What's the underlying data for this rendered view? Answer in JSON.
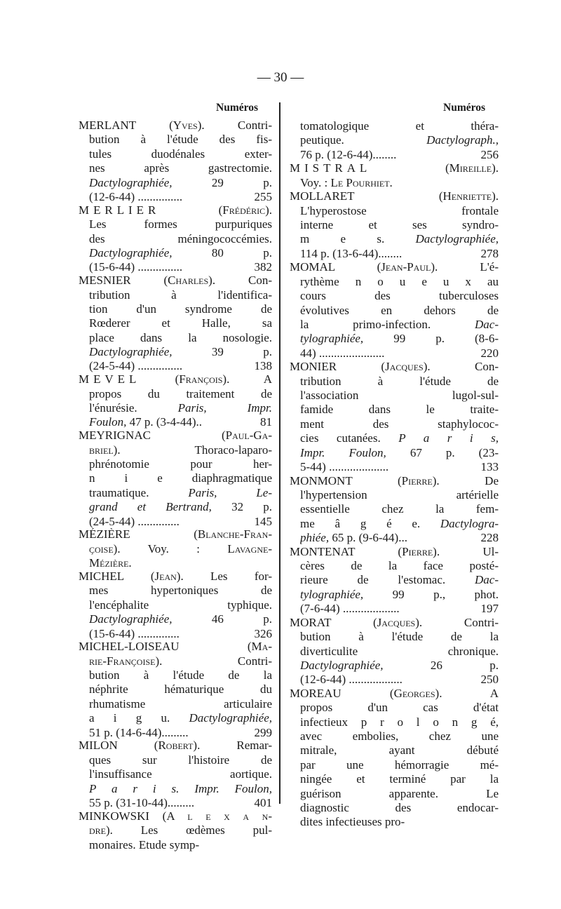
{
  "page_number": "— 30 —",
  "header_label": "Numéros",
  "left_column": [
    {
      "h": 1,
      "s": [
        [
          "MERLANT ",
          ""
        ],
        [
          "(Yves)",
          "sc"
        ],
        [
          ". Contri-",
          ""
        ]
      ]
    },
    {
      "s": [
        [
          "bution à l'étude des fis-",
          ""
        ]
      ]
    },
    {
      "s": [
        [
          "tules duodénales exter-",
          ""
        ]
      ]
    },
    {
      "s": [
        [
          "nes après gastrectomie.",
          ""
        ]
      ]
    },
    {
      "s": [
        [
          "Dactylographiée,",
          "i"
        ],
        [
          " 29 p.",
          ""
        ]
      ]
    },
    {
      "s": [
        [
          "(12-6-44) ...............",
          ""
        ]
      ],
      "n": "255"
    },
    {
      "h": 1,
      "s": [
        [
          "MERLIER",
          "sp"
        ],
        [
          " (Frédéric)",
          "sc"
        ],
        [
          ".",
          ""
        ]
      ]
    },
    {
      "s": [
        [
          "Les formes purpuriques",
          ""
        ]
      ]
    },
    {
      "s": [
        [
          "des méningococcémies.",
          ""
        ]
      ]
    },
    {
      "s": [
        [
          "Dactylographiée,",
          "i"
        ],
        [
          " 80 p.",
          ""
        ]
      ]
    },
    {
      "s": [
        [
          "(15-6-44) ...............",
          ""
        ]
      ],
      "n": "382"
    },
    {
      "h": 1,
      "s": [
        [
          "MESNIER ",
          ""
        ],
        [
          "(Charles)",
          "sc"
        ],
        [
          ". Con-",
          ""
        ]
      ]
    },
    {
      "s": [
        [
          "tribution à l'identifica-",
          ""
        ]
      ]
    },
    {
      "s": [
        [
          "tion d'un syndrome de",
          ""
        ]
      ]
    },
    {
      "s": [
        [
          "Rœderer et Halle, sa",
          ""
        ]
      ]
    },
    {
      "s": [
        [
          "place dans la nosologie.",
          ""
        ]
      ]
    },
    {
      "s": [
        [
          "Dactylographiée,",
          "i"
        ],
        [
          " 39 p.",
          ""
        ]
      ]
    },
    {
      "s": [
        [
          "(24-5-44) ...............",
          ""
        ]
      ],
      "n": "138"
    },
    {
      "h": 1,
      "s": [
        [
          "MEVEL",
          "sp"
        ],
        [
          " (François)",
          "sc"
        ],
        [
          ". A",
          ""
        ]
      ]
    },
    {
      "s": [
        [
          "propos du traitement de",
          ""
        ]
      ]
    },
    {
      "s": [
        [
          "l'énurésie. ",
          ""
        ],
        [
          "Paris, Impr.",
          "i"
        ]
      ]
    },
    {
      "s": [
        [
          "Foulon,",
          "i"
        ],
        [
          " 47 p. (3-4-44)..",
          ""
        ]
      ],
      "n": "81"
    },
    {
      "h": 1,
      "s": [
        [
          "MEYRIGNAC ",
          ""
        ],
        [
          "(Paul-Ga-",
          "sc"
        ]
      ]
    },
    {
      "s": [
        [
          "briel)",
          "sc"
        ],
        [
          ". Thoraco-laparo-",
          ""
        ]
      ]
    },
    {
      "s": [
        [
          "phrénotomie pour her-",
          ""
        ]
      ]
    },
    {
      "s": [
        [
          "n i e diaphragmatique",
          ""
        ]
      ]
    },
    {
      "s": [
        [
          "traumatique. ",
          ""
        ],
        [
          "Paris, Le-",
          "i"
        ]
      ]
    },
    {
      "s": [
        [
          "grand et Bertrand,",
          "i"
        ],
        [
          " 32 p.",
          ""
        ]
      ]
    },
    {
      "s": [
        [
          "(24-5-44) ..............",
          ""
        ]
      ],
      "n": "145"
    },
    {
      "h": 1,
      "s": [
        [
          "MÉZIÈRE ",
          ""
        ],
        [
          "(Blanche-Fran-",
          "sc"
        ]
      ]
    },
    {
      "s": [
        [
          "çoise)",
          "sc"
        ],
        [
          ". Voy. : ",
          ""
        ],
        [
          "Lavagne-",
          "sc"
        ]
      ]
    },
    {
      "s": [
        [
          "Mézière.",
          "sc"
        ]
      ]
    },
    {
      "h": 1,
      "s": [
        [
          "MICHEL ",
          ""
        ],
        [
          "(Jean)",
          "sc"
        ],
        [
          ". Les for-",
          ""
        ]
      ]
    },
    {
      "s": [
        [
          "mes hypertoniques de",
          ""
        ]
      ]
    },
    {
      "s": [
        [
          "l'encéphalite typhique.",
          ""
        ]
      ]
    },
    {
      "s": [
        [
          "Dactylographiée,",
          "i"
        ],
        [
          " 46 p.",
          ""
        ]
      ]
    },
    {
      "s": [
        [
          "(15-6-44) ..............",
          ""
        ]
      ],
      "n": "326"
    },
    {
      "h": 1,
      "s": [
        [
          "MICHEL-LOISEAU ",
          ""
        ],
        [
          "(Ma-",
          "sc"
        ]
      ]
    },
    {
      "s": [
        [
          "rie-Françoise)",
          "sc"
        ],
        [
          ". Contri-",
          ""
        ]
      ]
    },
    {
      "s": [
        [
          "bution à l'étude de la",
          ""
        ]
      ]
    },
    {
      "s": [
        [
          "néphrite hématurique du",
          ""
        ]
      ]
    },
    {
      "s": [
        [
          "rhumatisme articulaire",
          ""
        ]
      ]
    },
    {
      "s": [
        [
          "a i g u. ",
          ""
        ],
        [
          "Dactylographiée,",
          "i"
        ]
      ]
    },
    {
      "s": [
        [
          "51 p. (14-6-44).........",
          ""
        ]
      ],
      "n": "299"
    },
    {
      "h": 1,
      "s": [
        [
          "MILON ",
          ""
        ],
        [
          "(Robert)",
          "sc"
        ],
        [
          ". Remar-",
          ""
        ]
      ]
    },
    {
      "s": [
        [
          "ques sur l'histoire de",
          ""
        ]
      ]
    },
    {
      "s": [
        [
          "l'insuffisance aortique.",
          ""
        ]
      ]
    },
    {
      "s": [
        [
          "P a r i s. Impr. Foulon,",
          "i"
        ]
      ]
    },
    {
      "s": [
        [
          "55 p. (31-10-44).........",
          ""
        ]
      ],
      "n": "401"
    },
    {
      "h": 1,
      "s": [
        [
          "MINKOWSKI ",
          ""
        ],
        [
          "(A l e x a n-",
          "sc"
        ]
      ]
    },
    {
      "s": [
        [
          "dre)",
          "sc"
        ],
        [
          ". Les œdèmes pul-",
          ""
        ]
      ]
    },
    {
      "s": [
        [
          "monaires. Etude symp-",
          ""
        ]
      ]
    }
  ],
  "right_column": [
    {
      "s": [
        [
          "tomatologique et théra-",
          ""
        ]
      ]
    },
    {
      "s": [
        [
          "peutique. ",
          ""
        ],
        [
          "Dactylograph.,",
          "i"
        ]
      ]
    },
    {
      "s": [
        [
          "76 p. (12-6-44)........",
          ""
        ]
      ],
      "n": "256"
    },
    {
      "h": 1,
      "s": [
        [
          "MISTRAL",
          "sp"
        ],
        [
          " (Mireille)",
          "sc"
        ],
        [
          ".",
          ""
        ]
      ]
    },
    {
      "e": 1,
      "s": [
        [
          "Voy. : ",
          ""
        ],
        [
          "Le Pourhiet",
          "sc"
        ],
        [
          ".",
          ""
        ]
      ]
    },
    {
      "h": 1,
      "s": [
        [
          "MOLLARET ",
          ""
        ],
        [
          "(Henriette)",
          "sc"
        ],
        [
          ".",
          ""
        ]
      ]
    },
    {
      "s": [
        [
          "L'hyperostose frontale",
          ""
        ]
      ]
    },
    {
      "s": [
        [
          "interne et ses syndro-",
          ""
        ]
      ]
    },
    {
      "s": [
        [
          "m e s. ",
          ""
        ],
        [
          "Dactylographiée,",
          "i"
        ]
      ]
    },
    {
      "s": [
        [
          "114 p. (13-6-44)........",
          ""
        ]
      ],
      "n": "278"
    },
    {
      "h": 1,
      "s": [
        [
          "MOMAL ",
          ""
        ],
        [
          "(Jean-Paul)",
          "sc"
        ],
        [
          ". L'é-",
          ""
        ]
      ]
    },
    {
      "s": [
        [
          "rythème n o u e u x au",
          ""
        ]
      ]
    },
    {
      "s": [
        [
          "cours des tuberculoses",
          ""
        ]
      ]
    },
    {
      "s": [
        [
          "évolutives en dehors de",
          ""
        ]
      ]
    },
    {
      "s": [
        [
          "la primo-infection. ",
          ""
        ],
        [
          "Dac-",
          "i"
        ]
      ]
    },
    {
      "s": [
        [
          "tylographiée,",
          "i"
        ],
        [
          " 99 p. (8-6-",
          ""
        ]
      ]
    },
    {
      "s": [
        [
          "44) ......................",
          ""
        ]
      ],
      "n": "220"
    },
    {
      "h": 1,
      "s": [
        [
          "MONIER ",
          ""
        ],
        [
          "(Jacques)",
          "sc"
        ],
        [
          ". Con-",
          ""
        ]
      ]
    },
    {
      "s": [
        [
          "tribution à l'étude de",
          ""
        ]
      ]
    },
    {
      "s": [
        [
          "l'association lugol-sul-",
          ""
        ]
      ]
    },
    {
      "s": [
        [
          "famide dans le traite-",
          ""
        ]
      ]
    },
    {
      "s": [
        [
          "ment des staphylococ-",
          ""
        ]
      ]
    },
    {
      "s": [
        [
          "cies cutanées. ",
          ""
        ],
        [
          "P a r i s,",
          "i"
        ]
      ]
    },
    {
      "s": [
        [
          "Impr. Foulon,",
          "i"
        ],
        [
          " 67 p. (23-",
          ""
        ]
      ]
    },
    {
      "s": [
        [
          "5-44) ....................",
          ""
        ]
      ],
      "n": "133"
    },
    {
      "h": 1,
      "s": [
        [
          "MONMONT ",
          ""
        ],
        [
          "(Pierre)",
          "sc"
        ],
        [
          ". De",
          ""
        ]
      ]
    },
    {
      "s": [
        [
          "l'hypertension artérielle",
          ""
        ]
      ]
    },
    {
      "s": [
        [
          "essentielle chez la fem-",
          ""
        ]
      ]
    },
    {
      "s": [
        [
          "me â g é e. ",
          ""
        ],
        [
          "Dactylogra-",
          "i"
        ]
      ]
    },
    {
      "s": [
        [
          "phiée,",
          "i"
        ],
        [
          " 65 p. (9-6-44)...",
          ""
        ]
      ],
      "n": "228"
    },
    {
      "h": 1,
      "s": [
        [
          "MONTENAT ",
          ""
        ],
        [
          "(Pierre)",
          "sc"
        ],
        [
          ". Ul-",
          ""
        ]
      ]
    },
    {
      "s": [
        [
          "cères de la face posté-",
          ""
        ]
      ]
    },
    {
      "s": [
        [
          "rieure de l'estomac. ",
          ""
        ],
        [
          "Dac-",
          "i"
        ]
      ]
    },
    {
      "s": [
        [
          "tylographiée,",
          "i"
        ],
        [
          " 99 p., phot.",
          ""
        ]
      ]
    },
    {
      "s": [
        [
          "(7-6-44) ...................",
          ""
        ]
      ],
      "n": "197"
    },
    {
      "h": 1,
      "s": [
        [
          "MORAT ",
          ""
        ],
        [
          "(Jacques)",
          "sc"
        ],
        [
          ". Contri-",
          ""
        ]
      ]
    },
    {
      "s": [
        [
          "bution à l'étude de la",
          ""
        ]
      ]
    },
    {
      "s": [
        [
          "diverticulite chronique.",
          ""
        ]
      ]
    },
    {
      "s": [
        [
          "Dactylographiée,",
          "i"
        ],
        [
          " 26 p.",
          ""
        ]
      ]
    },
    {
      "s": [
        [
          "(12-6-44) ..................",
          ""
        ]
      ],
      "n": "250"
    },
    {
      "h": 1,
      "s": [
        [
          "MOREAU ",
          ""
        ],
        [
          "(Georges)",
          "sc"
        ],
        [
          ". A",
          ""
        ]
      ]
    },
    {
      "s": [
        [
          "propos d'un cas d'état",
          ""
        ]
      ]
    },
    {
      "s": [
        [
          "infectieux p r o l o n g é,",
          ""
        ]
      ]
    },
    {
      "s": [
        [
          "avec embolies, chez une",
          ""
        ]
      ]
    },
    {
      "s": [
        [
          "mitrale, ayant débuté",
          ""
        ]
      ]
    },
    {
      "s": [
        [
          "par une hémorragie mé-",
          ""
        ]
      ]
    },
    {
      "s": [
        [
          "ningée et terminé par la",
          ""
        ]
      ]
    },
    {
      "s": [
        [
          "guérison apparente. Le",
          ""
        ]
      ]
    },
    {
      "s": [
        [
          "diagnostic des endocar-",
          ""
        ]
      ]
    },
    {
      "s": [
        [
          "dites infectieuses pro-",
          ""
        ]
      ]
    }
  ]
}
